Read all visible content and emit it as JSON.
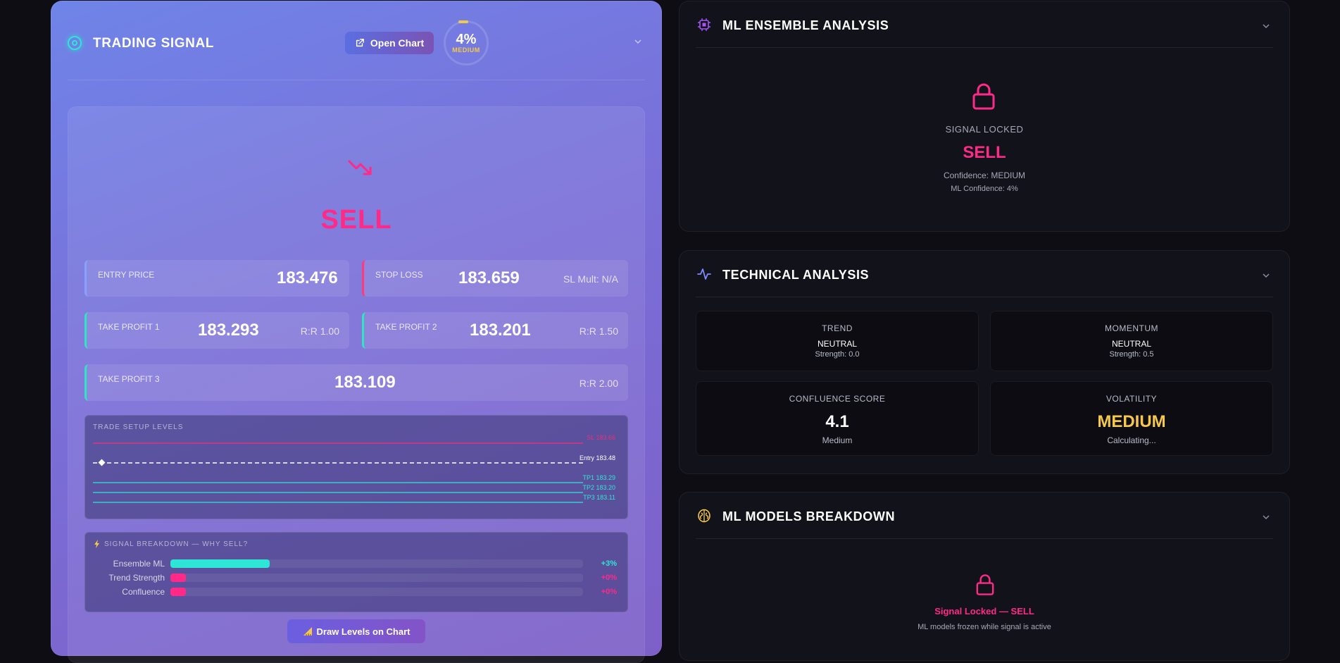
{
  "trading_signal": {
    "title": "TRADING SIGNAL",
    "open_chart_label": "Open Chart",
    "confidence_pct": "4%",
    "confidence_level": "MEDIUM",
    "signal": "SELL",
    "entry": {
      "label": "ENTRY PRICE",
      "value": "183.476"
    },
    "stop_loss": {
      "label": "STOP LOSS",
      "value": "183.659",
      "sub": "SL Mult: N/A"
    },
    "take_profit_1": {
      "label": "TAKE PROFIT 1",
      "value": "183.293",
      "sub": "R:R 1.00"
    },
    "take_profit_2": {
      "label": "TAKE PROFIT 2",
      "value": "183.201",
      "sub": "R:R 1.50"
    },
    "take_profit_3": {
      "label": "TAKE PROFIT 3",
      "value": "183.109",
      "sub": "R:R 2.00"
    },
    "setup": {
      "title": "TRADE SETUP LEVELS",
      "sl_label": "SL 183.66",
      "entry_label": "Entry 183.48",
      "tp1_label": "TP1 183.29",
      "tp2_label": "TP2 183.20",
      "tp3_label": "TP3 183.11"
    },
    "breakdown": {
      "title": "SIGNAL BREAKDOWN — WHY SELL?",
      "rows": [
        {
          "label": "Ensemble ML",
          "value": "+3%",
          "fill": 0.03,
          "color": "#2ee6d6"
        },
        {
          "label": "Trend Strength",
          "value": "+0%",
          "fill": 0.0,
          "color": "#ff2a88"
        },
        {
          "label": "Confluence",
          "value": "+0%",
          "fill": 0.0,
          "color": "#ff2a88"
        }
      ]
    },
    "draw_button_label": "Draw Levels on Chart",
    "colors": {
      "sell": "#ff2a88",
      "tp": "#2ee6d6",
      "medium": "#f5c84c"
    }
  },
  "ml_ensemble": {
    "title": "ML ENSEMBLE ANALYSIS",
    "locked_label": "SIGNAL LOCKED",
    "signal": "SELL",
    "confidence_text": "Confidence: MEDIUM",
    "ml_confidence_text": "ML Confidence: 4%"
  },
  "technical": {
    "title": "TECHNICAL ANALYSIS",
    "trend": {
      "label": "TREND",
      "value": "NEUTRAL",
      "sub": "Strength: 0.0"
    },
    "momentum": {
      "label": "MOMENTUM",
      "value": "NEUTRAL",
      "sub": "Strength: 0.5"
    },
    "confluence": {
      "label": "CONFLUENCE SCORE",
      "value": "4.1",
      "sub": "Medium"
    },
    "volatility": {
      "label": "VOLATILITY",
      "value": "MEDIUM",
      "sub": "Calculating..."
    }
  },
  "ml_models": {
    "title": "ML MODELS BREAKDOWN",
    "locked_text": "Signal Locked — SELL",
    "locked_sub": "ML models frozen while signal is active"
  }
}
